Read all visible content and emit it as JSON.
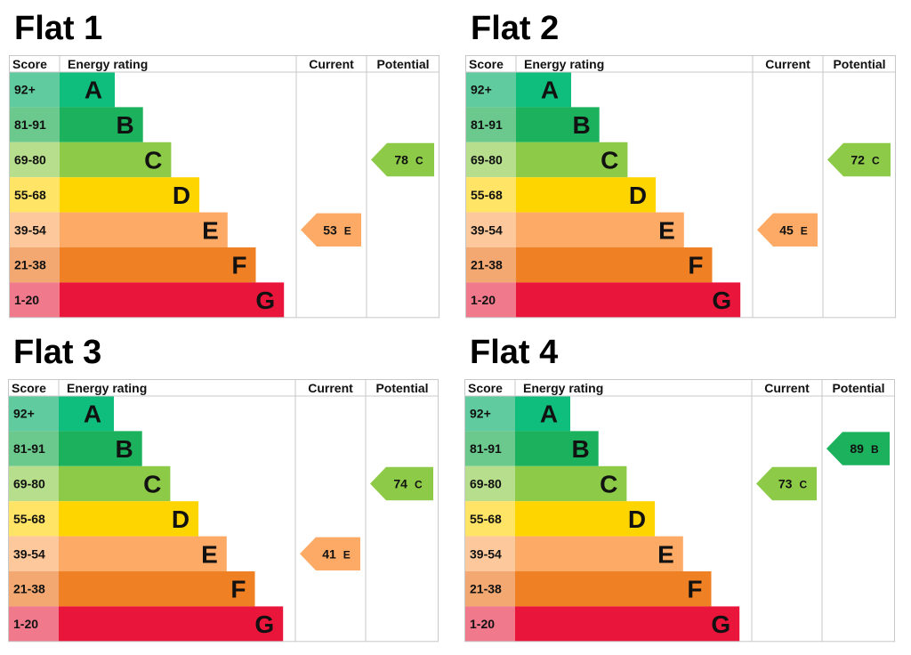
{
  "headers": {
    "score": "Score",
    "rating": "Energy rating",
    "current": "Current",
    "potential": "Potential"
  },
  "bands": [
    {
      "score": "92+",
      "letter": "A",
      "color": "#0FBE7C",
      "score_bg": "#5FCB9E"
    },
    {
      "score": "81-91",
      "letter": "B",
      "color": "#1CB15C",
      "score_bg": "#6BC98E"
    },
    {
      "score": "69-80",
      "letter": "C",
      "color": "#8CCA47",
      "score_bg": "#B6DE8C"
    },
    {
      "score": "55-68",
      "letter": "D",
      "color": "#FFD500",
      "score_bg": "#FFE466"
    },
    {
      "score": "39-54",
      "letter": "E",
      "color": "#FCAA65",
      "score_bg": "#FDC89C"
    },
    {
      "score": "21-38",
      "letter": "F",
      "color": "#EF8023",
      "score_bg": "#F4A871"
    },
    {
      "score": "1-20",
      "letter": "G",
      "color": "#E9153B",
      "score_bg": "#F07A8C"
    }
  ],
  "chart_data": [
    {
      "type": "table",
      "title": "Flat 1",
      "current": {
        "value": 53,
        "band": "E"
      },
      "potential": {
        "value": 78,
        "band": "C"
      }
    },
    {
      "type": "table",
      "title": "Flat 2",
      "current": {
        "value": 45,
        "band": "E"
      },
      "potential": {
        "value": 72,
        "band": "C"
      }
    },
    {
      "type": "table",
      "title": "Flat 3",
      "current": {
        "value": 41,
        "band": "E"
      },
      "potential": {
        "value": 74,
        "band": "C"
      }
    },
    {
      "type": "table",
      "title": "Flat 4",
      "current": {
        "value": 73,
        "band": "C"
      },
      "potential": {
        "value": 89,
        "band": "B"
      }
    }
  ]
}
